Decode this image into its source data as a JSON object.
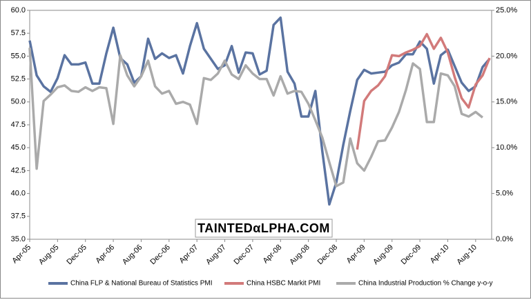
{
  "chart_data": {
    "type": "line",
    "annotation": "TAINTEDαLPHA.COM",
    "categories": [
      "Apr-05",
      null,
      null,
      null,
      "Aug-05",
      null,
      null,
      null,
      "Dec-05",
      null,
      null,
      null,
      "Apr-06",
      null,
      null,
      null,
      "Aug-06",
      null,
      null,
      null,
      "Dec-06",
      null,
      null,
      null,
      "Apr-07",
      null,
      null,
      null,
      "Aug-07",
      null,
      null,
      null,
      "Dec-07",
      null,
      null,
      null,
      "Apr-08",
      null,
      null,
      null,
      "Aug-08",
      null,
      null,
      null,
      "Dec-08",
      null,
      null,
      null,
      "Apr-09",
      null,
      null,
      null,
      "Aug-09",
      null,
      null,
      null,
      "Dec-09",
      null,
      null,
      null,
      "Apr-10",
      null,
      null,
      null,
      "Aug-10",
      null,
      null
    ],
    "series": [
      {
        "name": "China FLP & National Bureau of Statistics PMI",
        "color": "#5a73a1",
        "values": [
          56.7,
          52.9,
          51.7,
          51.1,
          52.6,
          55.1,
          54.1,
          54.1,
          54.3,
          52.0,
          52.0,
          55.3,
          58.1,
          54.8,
          54.1,
          52.1,
          52.8,
          56.9,
          54.7,
          55.3,
          54.8,
          55.1,
          53.1,
          56.1,
          58.6,
          55.8,
          54.7,
          53.6,
          54.0,
          56.1,
          53.2,
          55.4,
          55.3,
          53.0,
          53.4,
          58.4,
          59.2,
          53.3,
          52.0,
          48.4,
          48.4,
          51.2,
          44.6,
          38.8,
          41.2,
          45.3,
          49.0,
          52.4,
          53.5,
          53.1,
          53.2,
          53.3,
          54.0,
          54.3,
          55.2,
          55.2,
          56.6,
          55.8,
          52.0,
          55.1,
          55.7,
          53.9,
          52.1,
          51.2,
          51.7,
          53.8,
          54.7
        ]
      },
      {
        "name": "China HSBC  Markit PMI",
        "color": "#d27a7a",
        "values": [
          null,
          null,
          null,
          null,
          null,
          null,
          null,
          null,
          null,
          null,
          null,
          null,
          null,
          null,
          null,
          null,
          null,
          null,
          null,
          null,
          null,
          null,
          null,
          null,
          null,
          null,
          null,
          null,
          null,
          null,
          null,
          null,
          null,
          null,
          null,
          null,
          null,
          null,
          null,
          null,
          null,
          null,
          null,
          null,
          null,
          null,
          null,
          44.8,
          50.1,
          51.2,
          51.8,
          52.8,
          55.1,
          55.0,
          55.4,
          55.7,
          56.1,
          57.4,
          55.8,
          57.0,
          55.4,
          52.7,
          50.4,
          49.4,
          51.9,
          52.9,
          54.8
        ]
      },
      {
        "name": "China Industrial Production % Change y-o-y",
        "color": "#aaaaaa",
        "axis": "y2",
        "values": [
          20.9,
          7.7,
          15.1,
          15.8,
          16.6,
          16.8,
          16.2,
          16.1,
          16.6,
          16.2,
          16.6,
          16.5,
          12.6,
          20.1,
          17.9,
          16.7,
          17.8,
          19.5,
          16.7,
          15.9,
          16.2,
          14.8,
          15.0,
          14.7,
          12.6,
          17.6,
          17.4,
          18.1,
          19.5,
          18.0,
          17.5,
          19.0,
          18.1,
          17.5,
          17.5,
          15.7,
          17.8,
          15.9,
          16.2,
          16.1,
          14.8,
          13.0,
          11.1,
          8.4,
          5.8,
          6.2,
          11.0,
          8.3,
          7.5,
          9.0,
          10.7,
          10.8,
          12.2,
          13.9,
          16.3,
          19.2,
          18.6,
          12.8,
          12.8,
          18.1,
          17.9,
          16.7,
          13.7,
          13.4,
          13.9,
          13.3,
          null
        ]
      }
    ],
    "ylim": [
      35,
      60
    ],
    "yticks": [
      {
        "value": 35,
        "label": "35.0"
      },
      {
        "value": 37.5,
        "label": "37.5"
      },
      {
        "value": 40,
        "label": "40.0"
      },
      {
        "value": 42.5,
        "label": "42.5"
      },
      {
        "value": 45,
        "label": "45.0"
      },
      {
        "value": 47.5,
        "label": "47.5"
      },
      {
        "value": 50,
        "label": "50.0"
      },
      {
        "value": 52.5,
        "label": "52.5"
      },
      {
        "value": 55,
        "label": "55.0"
      },
      {
        "value": 57.5,
        "label": "57.5"
      },
      {
        "value": 60,
        "label": "60.0"
      }
    ],
    "y2lim": [
      0,
      25
    ],
    "y2ticks": [
      {
        "value": 0,
        "label": "0.0%"
      },
      {
        "value": 5,
        "label": "5.0%"
      },
      {
        "value": 10,
        "label": "10.0%"
      },
      {
        "value": 15,
        "label": "15.0%"
      },
      {
        "value": 20,
        "label": "20.0%"
      },
      {
        "value": 25,
        "label": "25.0%"
      }
    ],
    "legend": "bottom"
  }
}
